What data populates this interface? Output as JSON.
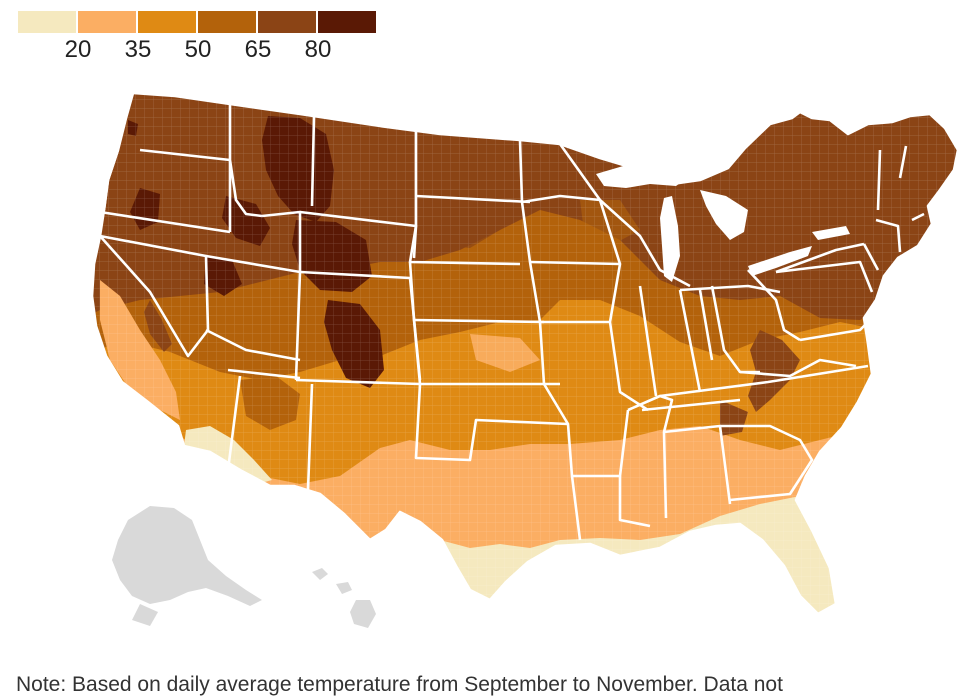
{
  "legend": {
    "colors": [
      "#f5e9bf",
      "#fbae63",
      "#df8a14",
      "#b3620b",
      "#8b4415",
      "#5a1905"
    ],
    "ticks": [
      "20",
      "35",
      "50",
      "65",
      "80"
    ]
  },
  "map": {
    "no_data_color": "#d9d9d9",
    "state_border_color": "#ffffff"
  },
  "note": "Note: Based on daily average temperature from September to November. Data not"
}
